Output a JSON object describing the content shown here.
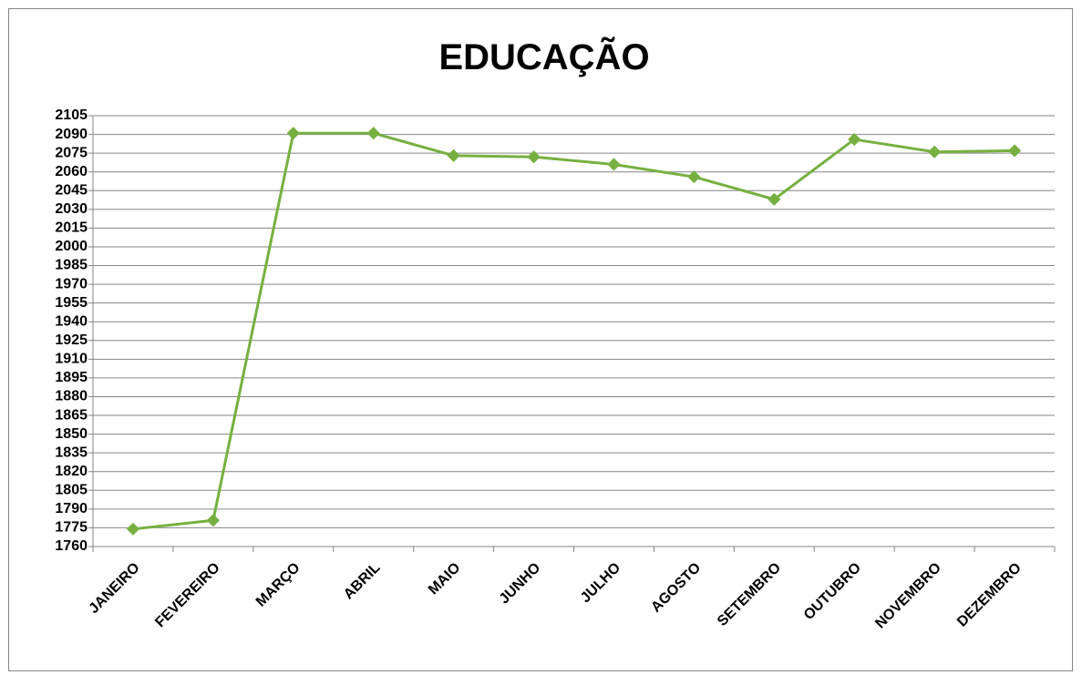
{
  "chart_data": {
    "type": "line",
    "title": "EDUCAÇÃO",
    "categories": [
      "JANEIRO",
      "FEVEREIRO",
      "MARÇO",
      "ABRIL",
      "MAIO",
      "JUNHO",
      "JULHO",
      "AGOSTO",
      "SETEMBRO",
      "OUTUBRO",
      "NOVEMBRO",
      "DEZEMBRO"
    ],
    "series": [
      {
        "name": "EDUCAÇÃO",
        "color": "#77b041",
        "values": [
          1774,
          1781,
          2091,
          2091,
          2073,
          2072,
          2066,
          2056,
          2038,
          2086,
          2076,
          2077
        ]
      }
    ],
    "ylim": [
      1760,
      2105
    ],
    "yticks": [
      1760,
      1775,
      1790,
      1805,
      1820,
      1835,
      1850,
      1865,
      1880,
      1895,
      1910,
      1925,
      1940,
      1955,
      1970,
      1985,
      2000,
      2015,
      2030,
      2045,
      2060,
      2075,
      2090,
      2105
    ],
    "grid": true
  }
}
